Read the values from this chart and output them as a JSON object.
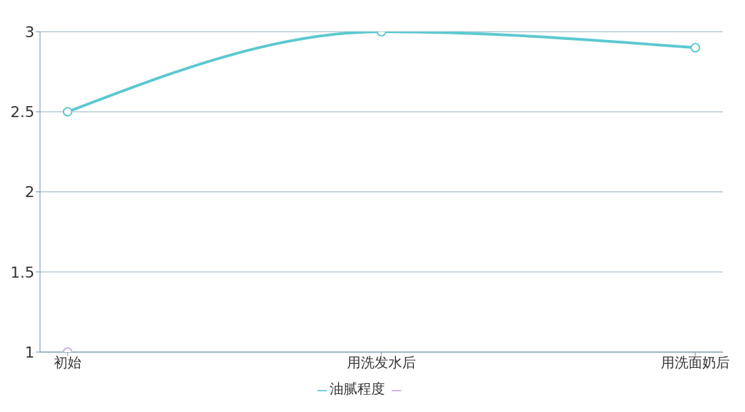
{
  "chart_data": {
    "type": "line",
    "categories": [
      "初始",
      "用洗发水后",
      "用洗面奶后"
    ],
    "series": [
      {
        "name": "油腻程度",
        "color": "#5cc8d0",
        "values": [
          2.5,
          3,
          2.9
        ]
      },
      {
        "color": "#c9aee0",
        "values": [
          1,
          null,
          null
        ]
      }
    ],
    "ylim": [
      1,
      3
    ],
    "yticks": [
      1,
      1.5,
      2,
      2.5,
      3
    ],
    "grid": "y",
    "legend": "bottom",
    "marker": "circle",
    "line_style": "solid"
  }
}
